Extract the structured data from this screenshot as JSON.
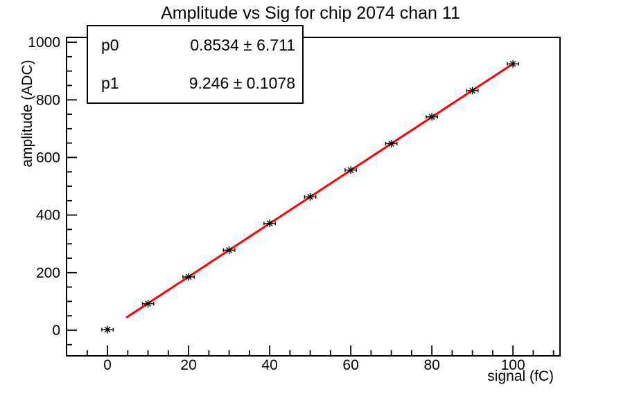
{
  "title": "Amplitude vs Sig for chip 2074 chan 11",
  "stats_box": {
    "rows": [
      {
        "param": "p0",
        "value": "0.8534 ± 6.711"
      },
      {
        "param": "p1",
        "value": "9.246 ± 0.1078"
      }
    ]
  },
  "chart_data": {
    "type": "scatter",
    "title": "Amplitude vs Sig for chip 2074 chan 11",
    "xlabel": "signal (fC)",
    "ylabel": "amplitude (ADC)",
    "xlim": [
      -10.1,
      111.6
    ],
    "ylim": [
      -89,
      1017
    ],
    "x_ticks_major": [
      0,
      20,
      40,
      60,
      80,
      100
    ],
    "x_minor_step": 5,
    "y_ticks_major": [
      0,
      200,
      400,
      600,
      800,
      1000
    ],
    "y_minor_step": 50,
    "grid": false,
    "x": [
      0,
      10,
      20,
      30,
      40,
      50,
      60,
      70,
      80,
      90,
      100
    ],
    "y": [
      2,
      92,
      185,
      278,
      371,
      463,
      556,
      648,
      741,
      832,
      925
    ],
    "x_err": 1.4,
    "marker": "asterisk",
    "marker_color": "#000000",
    "frame_color": "#000000",
    "background": "#ffffff",
    "fit": {
      "p0": 0.8534,
      "p0_err": 6.711,
      "p1": 9.246,
      "p1_err": 0.1078,
      "range": [
        4.8,
        100
      ],
      "color": "#ff0000",
      "line_width": 3
    }
  }
}
